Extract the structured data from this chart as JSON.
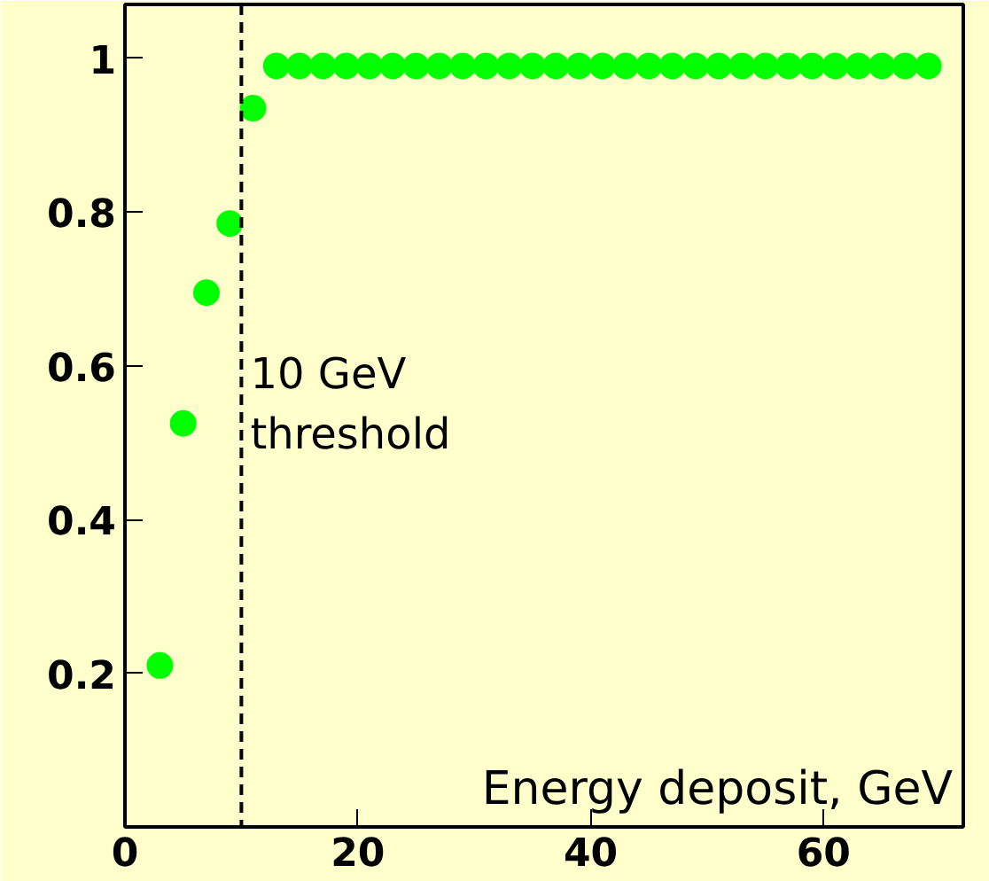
{
  "chart_data": {
    "type": "scatter",
    "xlabel": "Energy deposit, GeV",
    "x": [
      3,
      5,
      7,
      9,
      11,
      13,
      15,
      17,
      19,
      21,
      23,
      25,
      27,
      29,
      31,
      33,
      35,
      37,
      39,
      41,
      43,
      45,
      47,
      49,
      51,
      53,
      55,
      57,
      59,
      61,
      63,
      65,
      67,
      69
    ],
    "series": [
      {
        "color": "#00ff00",
        "values": [
          0.21,
          0.525,
          0.695,
          0.785,
          0.935,
          0.99,
          0.99,
          0.99,
          0.99,
          0.99,
          0.99,
          0.99,
          0.99,
          0.99,
          0.99,
          0.99,
          0.99,
          0.99,
          0.99,
          0.99,
          0.99,
          0.99,
          0.99,
          0.99,
          0.99,
          0.99,
          0.99,
          0.99,
          0.99,
          0.99,
          0.99,
          0.99,
          0.99,
          0.99
        ]
      }
    ],
    "xlim": [
      0,
      72
    ],
    "xticks": [
      0,
      20,
      40,
      60
    ],
    "ylim": [
      0,
      1.07
    ],
    "yticks": [
      0.2,
      0.4,
      0.6,
      0.8,
      1
    ],
    "ref_lines": [
      {
        "axis": "x",
        "value": 10,
        "label": "10 GeV\nthreshold",
        "color": "#000000",
        "line_style": "dashed"
      }
    ],
    "marker": "circle",
    "grid": false
  }
}
